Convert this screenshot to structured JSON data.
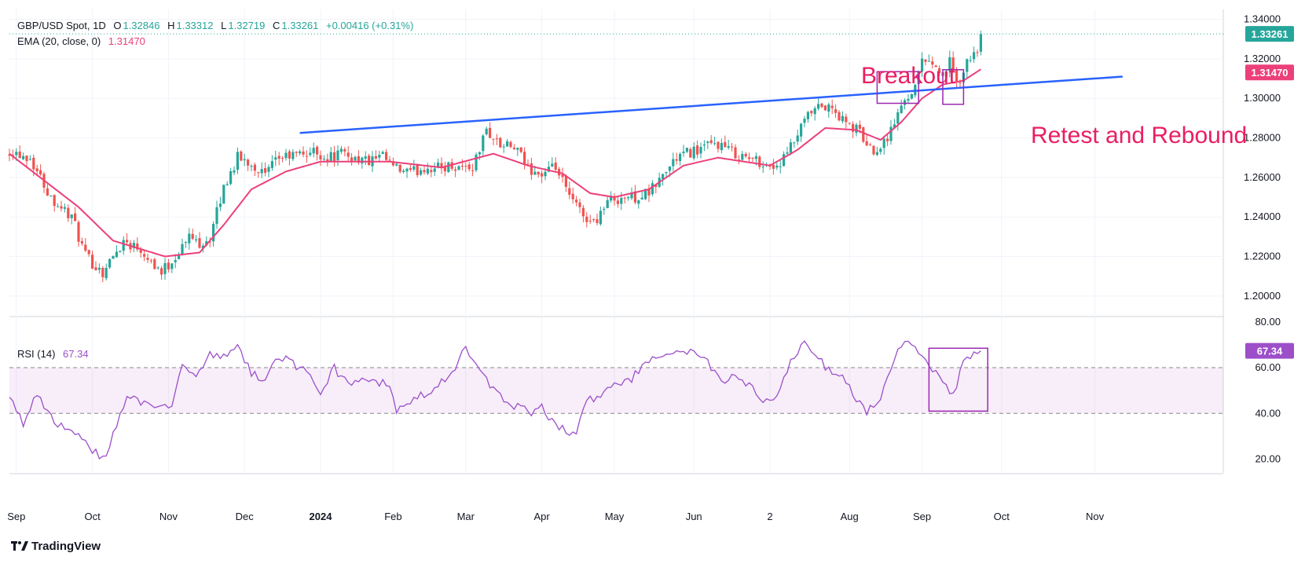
{
  "header": {
    "symbol_line": "GBP/USD Spot, 1D",
    "o_label": "O",
    "o_value": "1.32846",
    "h_label": "H",
    "h_value": "1.33312",
    "l_label": "L",
    "l_value": "1.32719",
    "c_label": "C",
    "c_value": "1.33261",
    "change": "+0.00416 (+0.31%)",
    "ema_label": "EMA (20, close, 0)",
    "ema_value": "1.31470",
    "rsi_label": "RSI (14)",
    "rsi_value": "67.34"
  },
  "annotations": {
    "breakout": "Breakout",
    "retest": "Retest and Rebound"
  },
  "branding": {
    "logo_text": "TradingView"
  },
  "colors": {
    "up": "#26a69a",
    "down": "#ef5350",
    "ema": "#ec407a",
    "trend": "#2962ff",
    "rsi": "#9c4fc9",
    "box": "#9c27b0",
    "price_badge": "#26a69a",
    "ema_badge": "#ec407a",
    "annotation": "#e91e63"
  },
  "chart_data": {
    "type": "candlestick",
    "title": "GBP/USD Spot, 1D",
    "price_axis": {
      "ylim": [
        1.19,
        1.345
      ],
      "ticks": [
        "1.20000",
        "1.22000",
        "1.24000",
        "1.26000",
        "1.28000",
        "1.30000",
        "1.32000",
        "1.34000"
      ],
      "last_price": "1.33261",
      "ema_last": "1.31470"
    },
    "time_axis": {
      "labels": [
        "Sep",
        "Oct",
        "Nov",
        "Dec",
        "2024",
        "Feb",
        "Mar",
        "Apr",
        "May",
        "Jun",
        "2",
        "Aug",
        "Sep",
        "Oct",
        "Nov"
      ],
      "label_bar_index": [
        2,
        24,
        46,
        68,
        90,
        111,
        132,
        154,
        175,
        198,
        220,
        243,
        264,
        287,
        314
      ],
      "bold_label": "2024"
    },
    "close_anchors": [
      [
        0,
        1.274
      ],
      [
        6,
        1.27
      ],
      [
        12,
        1.25
      ],
      [
        18,
        1.24
      ],
      [
        22,
        1.22
      ],
      [
        27,
        1.212
      ],
      [
        33,
        1.228
      ],
      [
        38,
        1.224
      ],
      [
        44,
        1.212
      ],
      [
        48,
        1.22
      ],
      [
        52,
        1.23
      ],
      [
        55,
        1.227
      ],
      [
        58,
        1.229
      ],
      [
        62,
        1.255
      ],
      [
        66,
        1.27
      ],
      [
        70,
        1.267
      ],
      [
        74,
        1.261
      ],
      [
        78,
        1.27
      ],
      [
        82,
        1.271
      ],
      [
        88,
        1.273
      ],
      [
        92,
        1.27
      ],
      [
        96,
        1.272
      ],
      [
        100,
        1.27
      ],
      [
        104,
        1.268
      ],
      [
        108,
        1.27
      ],
      [
        112,
        1.264
      ],
      [
        116,
        1.262
      ],
      [
        120,
        1.265
      ],
      [
        124,
        1.265
      ],
      [
        128,
        1.266
      ],
      [
        134,
        1.265
      ],
      [
        138,
        1.284
      ],
      [
        142,
        1.276
      ],
      [
        146,
        1.275
      ],
      [
        150,
        1.265
      ],
      [
        154,
        1.261
      ],
      [
        158,
        1.265
      ],
      [
        162,
        1.25
      ],
      [
        166,
        1.241
      ],
      [
        169,
        1.237
      ],
      [
        173,
        1.248
      ],
      [
        177,
        1.25
      ],
      [
        181,
        1.25
      ],
      [
        185,
        1.252
      ],
      [
        189,
        1.261
      ],
      [
        193,
        1.27
      ],
      [
        197,
        1.273
      ],
      [
        201,
        1.275
      ],
      [
        205,
        1.277
      ],
      [
        209,
        1.273
      ],
      [
        213,
        1.27
      ],
      [
        217,
        1.268
      ],
      [
        221,
        1.265
      ],
      [
        224,
        1.269
      ],
      [
        227,
        1.278
      ],
      [
        231,
        1.291
      ],
      [
        235,
        1.296
      ],
      [
        238,
        1.294
      ],
      [
        242,
        1.287
      ],
      [
        246,
        1.283
      ],
      [
        249,
        1.274
      ],
      [
        252,
        1.276
      ],
      [
        255,
        1.284
      ],
      [
        258,
        1.296
      ],
      [
        261,
        1.304
      ],
      [
        264,
        1.318
      ],
      [
        266,
        1.321
      ],
      [
        268,
        1.315
      ],
      [
        270,
        1.312
      ],
      [
        272,
        1.318
      ],
      [
        274,
        1.306
      ],
      [
        276,
        1.313
      ],
      [
        278,
        1.321
      ],
      [
        280,
        1.325
      ],
      [
        281,
        1.3326
      ]
    ],
    "ema_anchors": [
      [
        0,
        1.272
      ],
      [
        20,
        1.245
      ],
      [
        30,
        1.228
      ],
      [
        45,
        1.22
      ],
      [
        55,
        1.222
      ],
      [
        62,
        1.236
      ],
      [
        70,
        1.254
      ],
      [
        80,
        1.263
      ],
      [
        90,
        1.268
      ],
      [
        110,
        1.268
      ],
      [
        125,
        1.265
      ],
      [
        140,
        1.272
      ],
      [
        150,
        1.266
      ],
      [
        160,
        1.262
      ],
      [
        168,
        1.252
      ],
      [
        175,
        1.25
      ],
      [
        185,
        1.254
      ],
      [
        195,
        1.266
      ],
      [
        205,
        1.27
      ],
      [
        220,
        1.266
      ],
      [
        228,
        1.274
      ],
      [
        236,
        1.285
      ],
      [
        245,
        1.284
      ],
      [
        252,
        1.279
      ],
      [
        258,
        1.288
      ],
      [
        264,
        1.3
      ],
      [
        270,
        1.307
      ],
      [
        276,
        1.309
      ],
      [
        281,
        1.3147
      ]
    ],
    "trendline": {
      "from_bar": 84,
      "from_price": 1.2825,
      "to_bar": 322,
      "to_price": 1.311
    },
    "rsi_axis": {
      "ylim": [
        14,
        82
      ],
      "ticks": [
        "20.00",
        "40.00",
        "60.00",
        "80.00"
      ],
      "band": [
        40,
        60
      ]
    },
    "rsi_anchors": [
      [
        0,
        46
      ],
      [
        4,
        36
      ],
      [
        8,
        48
      ],
      [
        12,
        38
      ],
      [
        16,
        33
      ],
      [
        20,
        31
      ],
      [
        24,
        24
      ],
      [
        27,
        20
      ],
      [
        30,
        30
      ],
      [
        34,
        48
      ],
      [
        38,
        44
      ],
      [
        42,
        42
      ],
      [
        47,
        44
      ],
      [
        50,
        62
      ],
      [
        54,
        57
      ],
      [
        58,
        66
      ],
      [
        62,
        64
      ],
      [
        66,
        70
      ],
      [
        70,
        58
      ],
      [
        74,
        55
      ],
      [
        78,
        65
      ],
      [
        82,
        62
      ],
      [
        86,
        58
      ],
      [
        90,
        50
      ],
      [
        94,
        60
      ],
      [
        98,
        52
      ],
      [
        102,
        55
      ],
      [
        106,
        54
      ],
      [
        110,
        52
      ],
      [
        112,
        40
      ],
      [
        116,
        46
      ],
      [
        120,
        48
      ],
      [
        124,
        53
      ],
      [
        128,
        58
      ],
      [
        132,
        69
      ],
      [
        135,
        60
      ],
      [
        139,
        52
      ],
      [
        142,
        47
      ],
      [
        145,
        42
      ],
      [
        148,
        44
      ],
      [
        151,
        38
      ],
      [
        154,
        44
      ],
      [
        156,
        38
      ],
      [
        158,
        35
      ],
      [
        161,
        32
      ],
      [
        164,
        30
      ],
      [
        166,
        44
      ],
      [
        170,
        48
      ],
      [
        174,
        52
      ],
      [
        178,
        53
      ],
      [
        182,
        58
      ],
      [
        186,
        63
      ],
      [
        190,
        67
      ],
      [
        194,
        66
      ],
      [
        198,
        67
      ],
      [
        202,
        62
      ],
      [
        206,
        54
      ],
      [
        210,
        56
      ],
      [
        214,
        52
      ],
      [
        218,
        45
      ],
      [
        222,
        47
      ],
      [
        226,
        62
      ],
      [
        230,
        72
      ],
      [
        234,
        64
      ],
      [
        238,
        57
      ],
      [
        242,
        55
      ],
      [
        246,
        44
      ],
      [
        248,
        40
      ],
      [
        252,
        48
      ],
      [
        256,
        63
      ],
      [
        259,
        73
      ],
      [
        262,
        70
      ],
      [
        266,
        60
      ],
      [
        270,
        55
      ],
      [
        273,
        48
      ],
      [
        276,
        62
      ],
      [
        279,
        66
      ],
      [
        281,
        67.34
      ]
    ],
    "boxes": [
      {
        "name": "breakout-box",
        "bar_from": 251,
        "bar_to": 263,
        "price_top": 1.3135,
        "price_bottom": 1.2975
      },
      {
        "name": "retest-box",
        "bar_from": 270,
        "bar_to": 276,
        "price_top": 1.3145,
        "price_bottom": 1.297
      },
      {
        "name": "rsi-box",
        "bar_from": 266,
        "bar_to": 283,
        "rsi_top": 68.5,
        "rsi_bottom": 41
      }
    ]
  }
}
